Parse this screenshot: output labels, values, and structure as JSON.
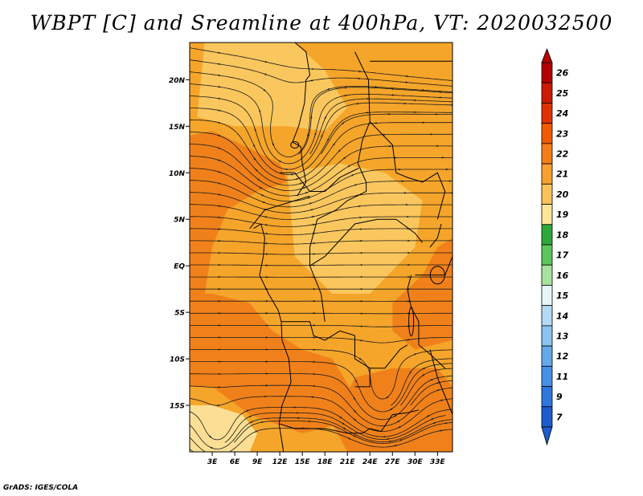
{
  "title": "WBPT [C] and Sreamline at 400hPa, VT: 2020032500",
  "credit": "GrADS: IGES/COLA",
  "map": {
    "lon_range": [
      0,
      35
    ],
    "lat_range": [
      -20,
      24
    ],
    "lat_ticks": [
      {
        "value": 20,
        "label": "20N"
      },
      {
        "value": 15,
        "label": "15N"
      },
      {
        "value": 10,
        "label": "10N"
      },
      {
        "value": 5,
        "label": "5N"
      },
      {
        "value": 0,
        "label": "EQ"
      },
      {
        "value": -5,
        "label": "5S"
      },
      {
        "value": -10,
        "label": "10S"
      },
      {
        "value": -15,
        "label": "15S"
      }
    ],
    "lon_ticks": [
      {
        "value": 3,
        "label": "3E"
      },
      {
        "value": 6,
        "label": "6E"
      },
      {
        "value": 9,
        "label": "9E"
      },
      {
        "value": 12,
        "label": "12E"
      },
      {
        "value": 15,
        "label": "15E"
      },
      {
        "value": 18,
        "label": "18E"
      },
      {
        "value": 21,
        "label": "21E"
      },
      {
        "value": 24,
        "label": "24E"
      },
      {
        "value": 27,
        "label": "27E"
      },
      {
        "value": 30,
        "label": "30E"
      },
      {
        "value": 33,
        "label": "33E"
      }
    ],
    "background_color": "#f5a52a",
    "regions": [
      {
        "name": "west-warm-band",
        "value": 22,
        "color": "#f07d18"
      },
      {
        "name": "southwest-warm",
        "value": 22,
        "color": "#f07d18"
      },
      {
        "name": "southeast-warm",
        "value": 22,
        "color": "#f07d18"
      },
      {
        "name": "east-warm",
        "value": 22,
        "color": "#f07d18"
      },
      {
        "name": "north-light",
        "value": 20,
        "color": "#fbcb64"
      },
      {
        "name": "central-light",
        "value": 20,
        "color": "#fbcb64"
      },
      {
        "name": "southwest-cool",
        "value": 19,
        "color": "#fde6a0"
      }
    ],
    "features": [
      {
        "name": "north-cyclonic-circulation",
        "lon": 13,
        "lat": 12
      },
      {
        "name": "south-anticyclonic-circulation",
        "lon": 25.5,
        "lat": -15
      },
      {
        "name": "southwest-circulation",
        "lon": 3.5,
        "lat": -19
      }
    ]
  },
  "colorbar": {
    "levels": [
      {
        "label": "26",
        "color": "#b30000"
      },
      {
        "label": "25",
        "color": "#cc1a00"
      },
      {
        "label": "24",
        "color": "#e03200"
      },
      {
        "label": "23",
        "color": "#f05a00"
      },
      {
        "label": "22",
        "color": "#f57d18"
      },
      {
        "label": "21",
        "color": "#f8a030"
      },
      {
        "label": "20",
        "color": "#fbc35a"
      },
      {
        "label": "19",
        "color": "#fde698"
      },
      {
        "label": "18",
        "color": "#2ea83a"
      },
      {
        "label": "17",
        "color": "#5cc65c"
      },
      {
        "label": "16",
        "color": "#a8e2a0"
      },
      {
        "label": "15",
        "color": "#e6f5f8"
      },
      {
        "label": "14",
        "color": "#b4daf5"
      },
      {
        "label": "13",
        "color": "#8cc4f0"
      },
      {
        "label": "12",
        "color": "#64aaeb"
      },
      {
        "label": "11",
        "color": "#4690e6"
      },
      {
        "label": "9",
        "color": "#2e78dc"
      },
      {
        "label": "7",
        "color": "#1c5ccc"
      }
    ]
  }
}
